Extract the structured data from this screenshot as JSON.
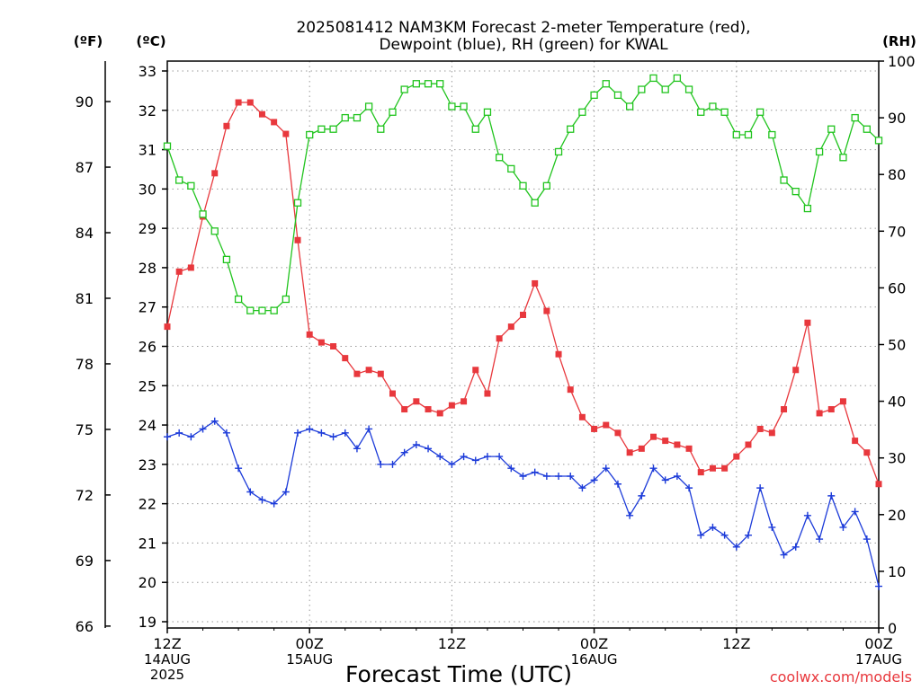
{
  "chart_data": {
    "type": "line",
    "title": [
      "2025081412 NAM3KM Forecast 2-meter Temperature (red),",
      "Dewpoint (blue), RH (green) for KWAL"
    ],
    "xlabel": "Forecast Time (UTC)",
    "credit": "coolwx.com/models",
    "unit_labels": {
      "fahrenheit": "(ºF)",
      "celsius": "(ºC)",
      "rh": "(RH)"
    },
    "x_range_hours": [
      0,
      60
    ],
    "celsius_axis": {
      "min": 19,
      "max": 33,
      "ticks": [
        "33",
        "32",
        "31",
        "30",
        "29",
        "28",
        "27",
        "26",
        "25",
        "24",
        "23",
        "22",
        "21",
        "20",
        "19"
      ]
    },
    "fahrenheit_axis": {
      "ticks": [
        "90",
        "87",
        "84",
        "81",
        "78",
        "75",
        "72",
        "69",
        "66"
      ]
    },
    "rh_axis": {
      "min": 0,
      "max": 100,
      "ticks": [
        "100",
        "90",
        "80",
        "70",
        "60",
        "50",
        "40",
        "30",
        "20",
        "10",
        "0"
      ]
    },
    "x_ticks": [
      {
        "hour": 0,
        "lines": [
          "12Z",
          "14AUG",
          "2025"
        ]
      },
      {
        "hour": 12,
        "lines": [
          "00Z",
          "15AUG"
        ]
      },
      {
        "hour": 24,
        "lines": [
          "12Z"
        ]
      },
      {
        "hour": 36,
        "lines": [
          "00Z",
          "16AUG"
        ]
      },
      {
        "hour": 48,
        "lines": [
          "12Z"
        ]
      },
      {
        "hour": 60,
        "lines": [
          "00Z",
          "17AUG"
        ]
      }
    ],
    "grid": true,
    "series": [
      {
        "name": "Temperature",
        "axis": "celsius",
        "color": "#e8383d",
        "marker": "filled-square",
        "values": [
          26.5,
          27.9,
          28.0,
          29.3,
          30.4,
          31.6,
          32.2,
          32.2,
          31.9,
          31.7,
          31.4,
          28.7,
          26.3,
          26.1,
          26.0,
          25.7,
          25.3,
          25.4,
          25.3,
          24.8,
          24.4,
          24.6,
          24.4,
          24.3,
          24.5,
          24.6,
          25.4,
          24.8,
          26.2,
          26.5,
          26.8,
          27.6,
          26.9,
          25.8,
          24.9,
          24.2,
          23.9,
          24.0,
          23.8,
          23.3,
          23.4,
          23.7,
          23.6,
          23.5,
          23.4,
          22.8,
          22.9,
          22.9,
          23.2,
          23.5,
          23.9,
          23.8,
          24.4,
          25.4,
          26.6,
          24.3,
          24.4,
          24.6,
          23.6,
          23.3,
          22.5
        ]
      },
      {
        "name": "Dewpoint",
        "axis": "celsius",
        "color": "#1c3bd9",
        "marker": "plus",
        "values": [
          23.7,
          23.8,
          23.7,
          23.9,
          24.1,
          23.8,
          22.9,
          22.3,
          22.1,
          22.0,
          22.3,
          23.8,
          23.9,
          23.8,
          23.7,
          23.8,
          23.4,
          23.9,
          23.0,
          23.0,
          23.3,
          23.5,
          23.4,
          23.2,
          23.0,
          23.2,
          23.1,
          23.2,
          23.2,
          22.9,
          22.7,
          22.8,
          22.7,
          22.7,
          22.7,
          22.4,
          22.6,
          22.9,
          22.5,
          21.7,
          22.2,
          22.9,
          22.6,
          22.7,
          22.4,
          21.2,
          21.4,
          21.2,
          20.9,
          21.2,
          22.4,
          21.4,
          20.7,
          20.9,
          21.7,
          21.1,
          22.2,
          21.4,
          21.8,
          21.1,
          19.9
        ]
      },
      {
        "name": "RH",
        "axis": "rh",
        "color": "#21c41e",
        "marker": "open-square",
        "values": [
          85,
          79,
          78,
          73,
          70,
          65,
          58,
          56,
          56,
          56,
          58,
          75,
          87,
          88,
          88,
          90,
          90,
          92,
          88,
          91,
          95,
          96,
          96,
          96,
          92,
          92,
          88,
          91,
          83,
          81,
          78,
          75,
          78,
          84,
          88,
          91,
          94,
          96,
          94,
          92,
          95,
          97,
          95,
          97,
          95,
          91,
          92,
          91,
          87,
          87,
          91,
          87,
          79,
          77,
          74,
          84,
          88,
          83,
          90,
          88,
          86
        ]
      }
    ]
  }
}
